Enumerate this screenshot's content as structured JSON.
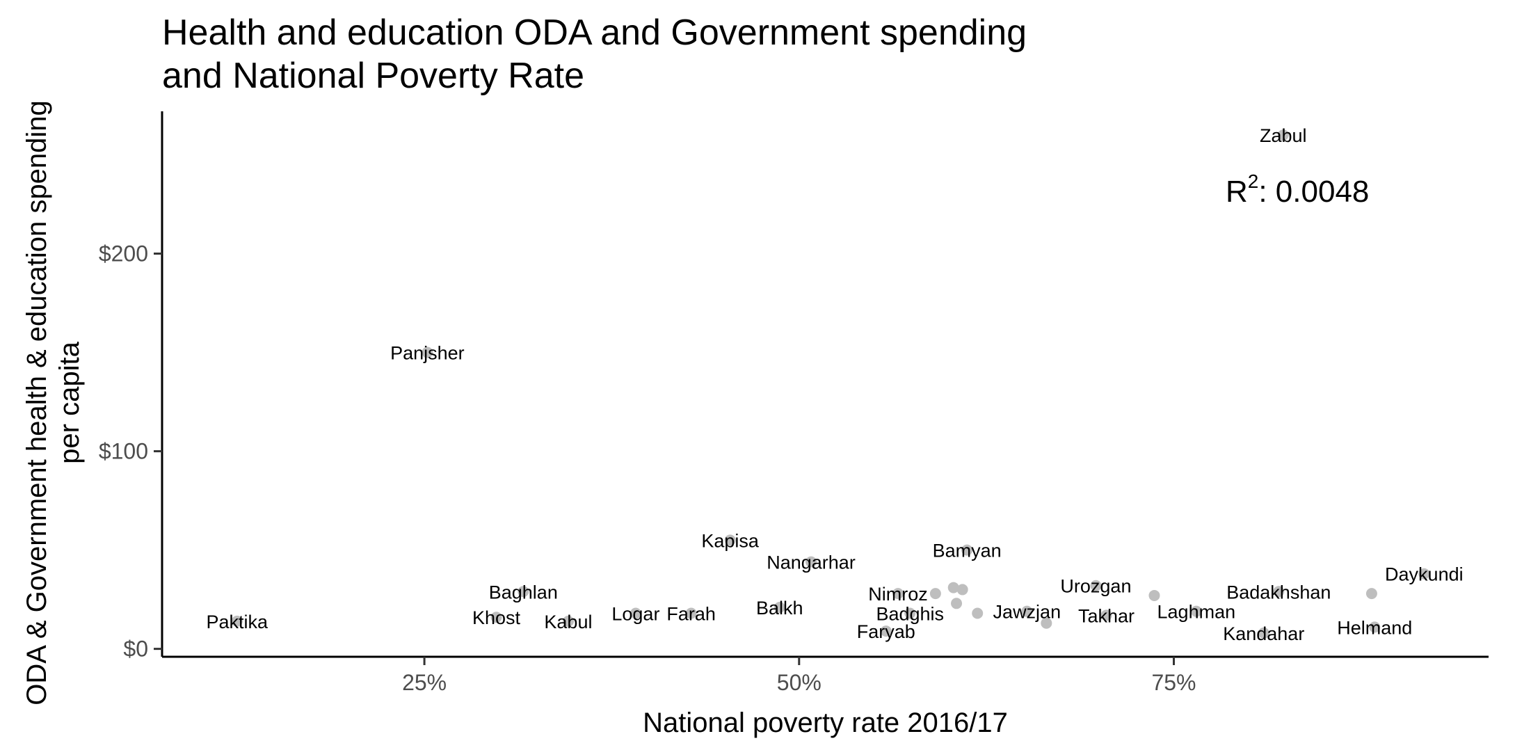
{
  "chart_data": {
    "type": "scatter",
    "title_lines": [
      "Health and education ODA and Government spending",
      "and National Poverty Rate"
    ],
    "xlabel": "National poverty rate 2016/17",
    "ylabel_lines": [
      "ODA & Government health & education spending",
      "per capita"
    ],
    "xlim": [
      0.075,
      0.96
    ],
    "ylim": [
      -4,
      272
    ],
    "x_ticks": [
      {
        "value": 0.25,
        "label": "25%"
      },
      {
        "value": 0.5,
        "label": "50%"
      },
      {
        "value": 0.75,
        "label": "75%"
      }
    ],
    "y_ticks": [
      {
        "value": 0,
        "label": "$0"
      },
      {
        "value": 100,
        "label": "$100"
      },
      {
        "value": 200,
        "label": "$200"
      }
    ],
    "annotation": {
      "prefix": "R",
      "superscript": "2",
      "suffix": ": 0.0048"
    },
    "point_color": "#bebebe",
    "points": [
      {
        "x": 0.823,
        "y": 260,
        "label": "Zabul"
      },
      {
        "x": 0.252,
        "y": 150,
        "label": "Panjsher"
      },
      {
        "x": 0.125,
        "y": 14,
        "label": "Paktika"
      },
      {
        "x": 0.316,
        "y": 29,
        "label": "Baghlan"
      },
      {
        "x": 0.298,
        "y": 16,
        "label": "Khost"
      },
      {
        "x": 0.346,
        "y": 14,
        "label": "Kabul"
      },
      {
        "x": 0.391,
        "y": 18,
        "label": "Logar"
      },
      {
        "x": 0.428,
        "y": 18,
        "label": "Farah"
      },
      {
        "x": 0.454,
        "y": 55,
        "label": "Kapisa"
      },
      {
        "x": 0.508,
        "y": 44,
        "label": "Nangarhar"
      },
      {
        "x": 0.487,
        "y": 21,
        "label": "Balkh"
      },
      {
        "x": 0.566,
        "y": 28,
        "label": "Nimroz"
      },
      {
        "x": 0.574,
        "y": 18,
        "label": "Badghis"
      },
      {
        "x": 0.558,
        "y": 9,
        "label": "Faryab"
      },
      {
        "x": 0.612,
        "y": 50,
        "label": "Bamyan"
      },
      {
        "x": 0.591,
        "y": 28,
        "label": ""
      },
      {
        "x": 0.603,
        "y": 31,
        "label": ""
      },
      {
        "x": 0.609,
        "y": 30,
        "label": ""
      },
      {
        "x": 0.605,
        "y": 23,
        "label": ""
      },
      {
        "x": 0.619,
        "y": 18,
        "label": ""
      },
      {
        "x": 0.652,
        "y": 19,
        "label": "Jawzjan"
      },
      {
        "x": 0.665,
        "y": 13,
        "label": ""
      },
      {
        "x": 0.698,
        "y": 32,
        "label": "Urozgan"
      },
      {
        "x": 0.705,
        "y": 17,
        "label": "Takhar"
      },
      {
        "x": 0.737,
        "y": 27,
        "label": ""
      },
      {
        "x": 0.765,
        "y": 19,
        "label": "Laghman"
      },
      {
        "x": 0.82,
        "y": 29,
        "label": "Badakhshan"
      },
      {
        "x": 0.81,
        "y": 8,
        "label": "Kandahar"
      },
      {
        "x": 0.917,
        "y": 38,
        "label": "Daykundi"
      },
      {
        "x": 0.882,
        "y": 28,
        "label": ""
      },
      {
        "x": 0.884,
        "y": 11,
        "label": "Helmand"
      }
    ]
  }
}
